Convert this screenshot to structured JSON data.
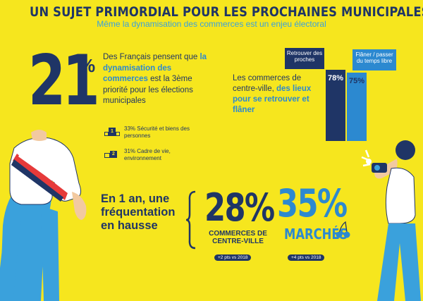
{
  "header": {
    "title": "UN SUJET PRIMORDIAL POUR LES PROCHAINES MUNICIPALES",
    "subtitle": "Même la dynamisation des commerces est un enjeu électoral"
  },
  "priority": {
    "big_value": "21",
    "percent_sign": "%",
    "text_before": "Des Français pensent que",
    "text_highlight": "la dynamisation des commerces",
    "text_after": "est la 3ème priorité pour les élections municipales",
    "ranks": [
      {
        "rank": "1",
        "text": "33% Sécurité et biens des personnes"
      },
      {
        "rank": "2",
        "text": "31% Cadre de vie, environnement"
      }
    ]
  },
  "center_ville": {
    "text_plain": "Les commerces de centre-ville,",
    "text_highlight": "des lieux pour se retrouver et flâner",
    "bars": [
      {
        "label": "Retrouver des proches",
        "value_text": "78%",
        "value": 78,
        "color": "#1f3566"
      },
      {
        "label": "Flâner / passer du temps libre",
        "value_text": "75%",
        "value": 75,
        "color": "#2c89d0"
      }
    ]
  },
  "frequentation": {
    "heading": "En 1 an, une fréquentation en hausse",
    "items": [
      {
        "value": "28%",
        "label": "COMMERCES DE CENTRE-VILLE",
        "delta": "+2 pts vs 2018",
        "color": "#1f3566"
      },
      {
        "value": "35%",
        "label": "MARCHÉS",
        "delta": "+4 pts vs 2018",
        "color": "#2c89d0"
      }
    ]
  },
  "colors": {
    "background": "#f6e61e",
    "navy": "#1f3566",
    "blue": "#2c89d0"
  }
}
